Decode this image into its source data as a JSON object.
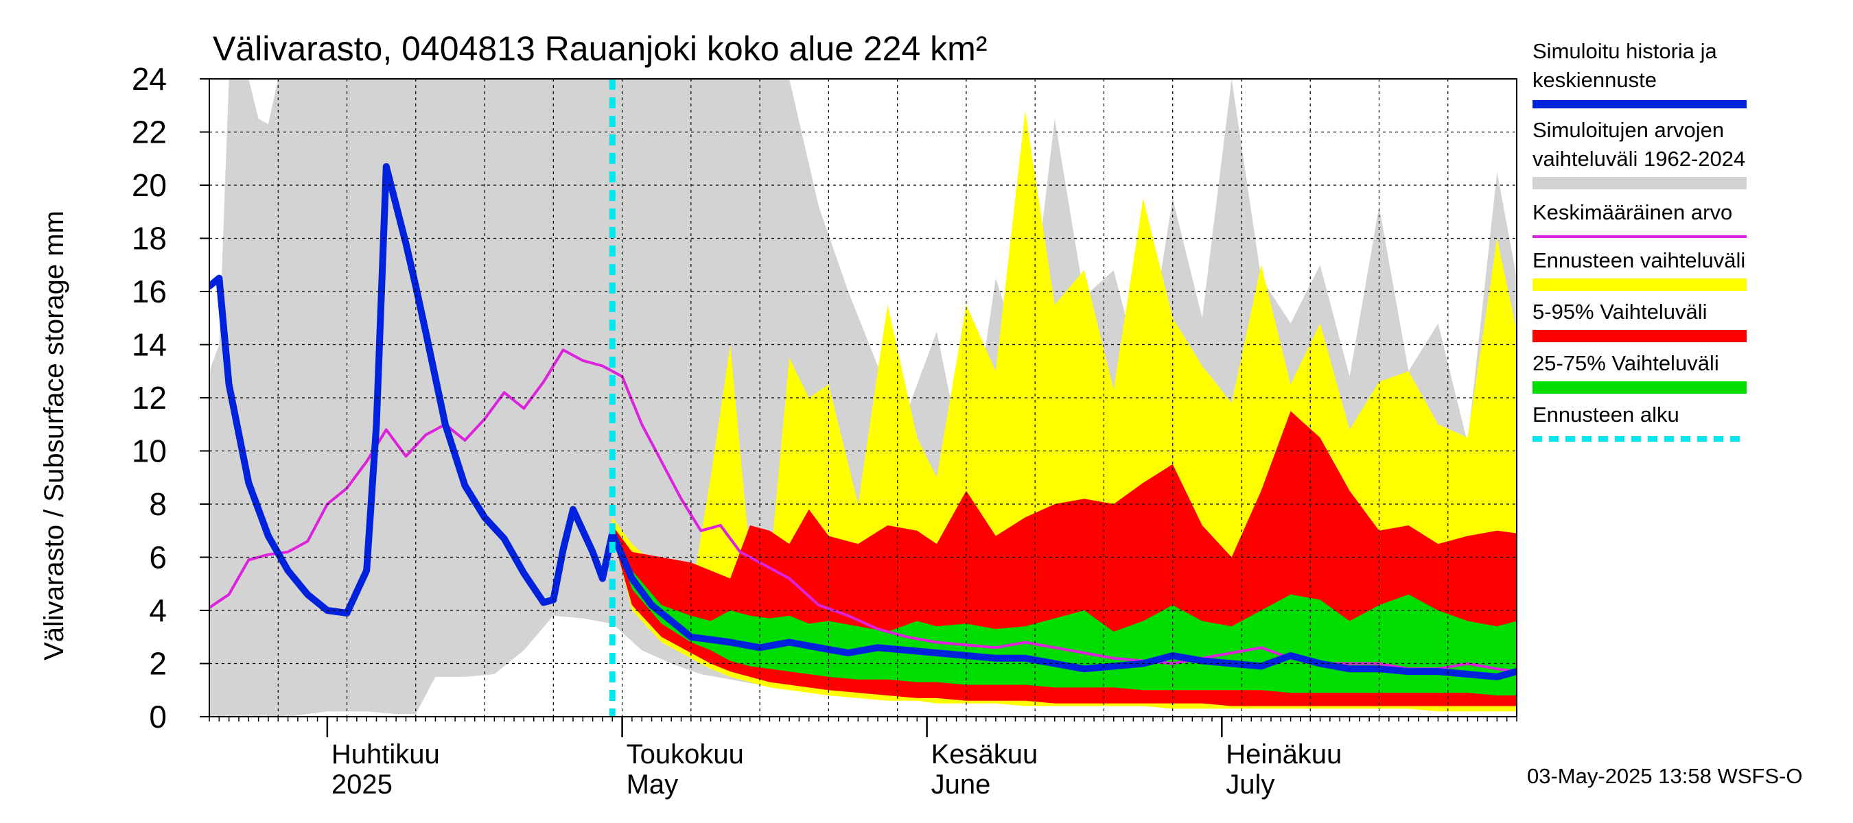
{
  "chart_data": {
    "type": "area",
    "title": "Välivarasto, 0404813 Rauanjoki koko alue 224 km²",
    "ylabel": "Välivarasto / Subsurface storage  mm",
    "xlabel": "",
    "x_range": [
      "2025-03-20",
      "2025-07-31"
    ],
    "ylim": [
      0,
      24
    ],
    "yticks": [
      0,
      2,
      4,
      6,
      8,
      10,
      12,
      14,
      16,
      18,
      20,
      22,
      24
    ],
    "grid": true,
    "legend_position": "right",
    "month_labels": [
      {
        "date": "2025-04-01",
        "fi": "Huhtikuu",
        "en": "2025"
      },
      {
        "date": "2025-05-01",
        "fi": "Toukokuu",
        "en": "May"
      },
      {
        "date": "2025-06-01",
        "fi": "Kesäkuu",
        "en": "June"
      },
      {
        "date": "2025-07-01",
        "fi": "Heinäkuu",
        "en": "July"
      }
    ],
    "forecast_start": "2025-04-30",
    "legend": [
      {
        "label": "Simuloitu historia ja keskiennuste",
        "color": "#0022dd",
        "style": "thick-line"
      },
      {
        "label": "Simuloitujen arvojen vaihteluväli 1962-2024",
        "color": "#d3d3d3",
        "style": "band"
      },
      {
        "label": "Keskimääräinen arvo",
        "color": "#dd22dd",
        "style": "line"
      },
      {
        "label": "Ennusteen vaihteluväli",
        "color": "#ffff00",
        "style": "band"
      },
      {
        "label": "5-95% Vaihteluväli",
        "color": "#ff0000",
        "style": "band"
      },
      {
        "label": "25-75% Vaihteluväli",
        "color": "#00dd00",
        "style": "band"
      },
      {
        "label": "Ennusteen alku",
        "color": "#00e5ee",
        "style": "dashed-line"
      }
    ],
    "footer": "03-May-2025 13:58 WSFS-O",
    "series": {
      "hist_range": {
        "name": "Simuloitujen arvojen vaihteluväli 1962-2024",
        "color": "#d3d3d3",
        "x": [
          "2025-03-20",
          "2025-03-21",
          "2025-03-22",
          "2025-03-23",
          "2025-03-24",
          "2025-03-25",
          "2025-03-26",
          "2025-03-27",
          "2025-03-28",
          "2025-04-01",
          "2025-04-03",
          "2025-04-05",
          "2025-04-08",
          "2025-04-10",
          "2025-04-12",
          "2025-04-15",
          "2025-04-18",
          "2025-04-21",
          "2025-04-24",
          "2025-04-27",
          "2025-04-30",
          "2025-05-03",
          "2025-05-06",
          "2025-05-09",
          "2025-05-12",
          "2025-05-15",
          "2025-05-18",
          "2025-05-21",
          "2025-05-24",
          "2025-05-27",
          "2025-05-30",
          "2025-06-02",
          "2025-06-05",
          "2025-06-08",
          "2025-06-11",
          "2025-06-14",
          "2025-06-17",
          "2025-06-20",
          "2025-06-23",
          "2025-06-26",
          "2025-06-29",
          "2025-07-02",
          "2025-07-05",
          "2025-07-08",
          "2025-07-11",
          "2025-07-14",
          "2025-07-17",
          "2025-07-20",
          "2025-07-23",
          "2025-07-26",
          "2025-07-29",
          "2025-07-31"
        ],
        "low": [
          0,
          0,
          0,
          0,
          0,
          0,
          0,
          0,
          0,
          0.2,
          0.2,
          0.2,
          0.1,
          0.1,
          1.5,
          1.5,
          1.6,
          2.5,
          3.8,
          3.7,
          3.5,
          2.5,
          2.0,
          1.6,
          1.4,
          1.2,
          1.1,
          1.0,
          0.9,
          0.8,
          0.8,
          0.7,
          0.7,
          0.6,
          0.6,
          0.6,
          0.5,
          0.5,
          0.5,
          0.5,
          0.5,
          0.4,
          0.4,
          0.4,
          0.4,
          0.4,
          0.4,
          0.3,
          0.3,
          0.3,
          0.3,
          0.3
        ],
        "high": [
          13,
          14,
          24,
          24,
          24,
          22.5,
          22.3,
          24,
          24,
          24,
          24,
          24,
          24,
          24,
          24,
          24,
          24,
          24,
          24,
          24,
          24,
          24,
          24,
          24,
          24,
          24,
          24,
          19.2,
          16,
          13.2,
          11.5,
          14.5,
          9,
          16.5,
          13,
          22.5,
          15.8,
          16.8,
          12.5,
          19.5,
          15,
          24,
          16.5,
          14.8,
          17,
          12.8,
          19.2,
          13,
          14.8,
          10.3,
          20.5,
          16.5
        ]
      },
      "forecast_range": {
        "name": "Ennusteen vaihteluväli",
        "color": "#ffff00",
        "x": [
          "2025-04-30",
          "2025-05-02",
          "2025-05-05",
          "2025-05-08",
          "2025-05-10",
          "2025-05-12",
          "2025-05-14",
          "2025-05-16",
          "2025-05-18",
          "2025-05-20",
          "2025-05-22",
          "2025-05-25",
          "2025-05-28",
          "2025-05-31",
          "2025-06-02",
          "2025-06-05",
          "2025-06-08",
          "2025-06-11",
          "2025-06-14",
          "2025-06-17",
          "2025-06-20",
          "2025-06-23",
          "2025-06-26",
          "2025-06-29",
          "2025-07-02",
          "2025-07-05",
          "2025-07-08",
          "2025-07-11",
          "2025-07-14",
          "2025-07-17",
          "2025-07-20",
          "2025-07-23",
          "2025-07-26",
          "2025-07-29",
          "2025-07-31"
        ],
        "low": [
          7.0,
          4.0,
          2.8,
          2.2,
          1.8,
          1.5,
          1.3,
          1.1,
          1.0,
          0.9,
          0.8,
          0.7,
          0.6,
          0.6,
          0.5,
          0.5,
          0.5,
          0.4,
          0.4,
          0.4,
          0.4,
          0.4,
          0.3,
          0.3,
          0.3,
          0.3,
          0.3,
          0.3,
          0.3,
          0.3,
          0.3,
          0.2,
          0.2,
          0.2,
          0.2
        ],
        "high": [
          7.5,
          6.5,
          5.5,
          4.5,
          9,
          14,
          6,
          5.5,
          13.5,
          12,
          12.5,
          8,
          15.5,
          10.5,
          9,
          15.5,
          13,
          22.8,
          15.5,
          16.8,
          12.3,
          19.5,
          15,
          13.2,
          11.8,
          17,
          12.5,
          14.8,
          10.8,
          12.6,
          13,
          11,
          10.5,
          18,
          14.5
        ]
      },
      "p5_95": {
        "name": "5-95% Vaihteluväli",
        "color": "#ff0000",
        "x": [
          "2025-04-30",
          "2025-05-02",
          "2025-05-05",
          "2025-05-08",
          "2025-05-10",
          "2025-05-12",
          "2025-05-14",
          "2025-05-16",
          "2025-05-18",
          "2025-05-20",
          "2025-05-22",
          "2025-05-25",
          "2025-05-28",
          "2025-05-31",
          "2025-06-02",
          "2025-06-05",
          "2025-06-08",
          "2025-06-11",
          "2025-06-14",
          "2025-06-17",
          "2025-06-20",
          "2025-06-23",
          "2025-06-26",
          "2025-06-29",
          "2025-07-02",
          "2025-07-05",
          "2025-07-08",
          "2025-07-11",
          "2025-07-14",
          "2025-07-17",
          "2025-07-20",
          "2025-07-23",
          "2025-07-26",
          "2025-07-29",
          "2025-07-31"
        ],
        "low": [
          6.8,
          4.2,
          3.0,
          2.4,
          2.0,
          1.7,
          1.5,
          1.3,
          1.2,
          1.1,
          1.0,
          0.9,
          0.8,
          0.7,
          0.7,
          0.6,
          0.6,
          0.6,
          0.5,
          0.5,
          0.5,
          0.5,
          0.5,
          0.5,
          0.4,
          0.4,
          0.4,
          0.4,
          0.4,
          0.4,
          0.4,
          0.4,
          0.4,
          0.4,
          0.4
        ],
        "high": [
          7.2,
          6.2,
          6.0,
          5.8,
          5.5,
          5.2,
          7.2,
          7.0,
          6.5,
          7.8,
          6.8,
          6.5,
          7.2,
          7.0,
          6.5,
          8.5,
          6.8,
          7.5,
          8.0,
          8.2,
          8.0,
          8.8,
          9.5,
          7.2,
          6.0,
          8.5,
          11.5,
          10.5,
          8.5,
          7.0,
          7.2,
          6.5,
          6.8,
          7.0,
          6.9
        ]
      },
      "p25_75": {
        "name": "25-75% Vaihteluväli",
        "color": "#00dd00",
        "x": [
          "2025-04-30",
          "2025-05-02",
          "2025-05-05",
          "2025-05-08",
          "2025-05-10",
          "2025-05-12",
          "2025-05-14",
          "2025-05-16",
          "2025-05-18",
          "2025-05-20",
          "2025-05-22",
          "2025-05-25",
          "2025-05-28",
          "2025-05-31",
          "2025-06-02",
          "2025-06-05",
          "2025-06-08",
          "2025-06-11",
          "2025-06-14",
          "2025-06-17",
          "2025-06-20",
          "2025-06-23",
          "2025-06-26",
          "2025-06-29",
          "2025-07-02",
          "2025-07-05",
          "2025-07-08",
          "2025-07-11",
          "2025-07-14",
          "2025-07-17",
          "2025-07-20",
          "2025-07-23",
          "2025-07-26",
          "2025-07-29",
          "2025-07-31"
        ],
        "low": [
          6.9,
          4.8,
          3.5,
          2.8,
          2.5,
          2.1,
          1.9,
          1.8,
          1.7,
          1.6,
          1.5,
          1.4,
          1.4,
          1.3,
          1.3,
          1.2,
          1.2,
          1.2,
          1.1,
          1.1,
          1.1,
          1.0,
          1.0,
          1.0,
          1.0,
          1.0,
          0.9,
          0.9,
          0.9,
          0.9,
          0.9,
          0.9,
          0.9,
          0.8,
          0.8
        ],
        "high": [
          7.0,
          5.5,
          4.2,
          3.8,
          3.6,
          4.0,
          3.8,
          3.7,
          3.8,
          3.5,
          3.6,
          3.4,
          3.2,
          3.6,
          3.4,
          3.5,
          3.3,
          3.4,
          3.7,
          4.0,
          3.2,
          3.6,
          4.2,
          3.6,
          3.4,
          4.0,
          4.6,
          4.4,
          3.6,
          4.2,
          4.6,
          4.0,
          3.6,
          3.4,
          3.6
        ]
      },
      "mean": {
        "name": "Keskimääräinen arvo",
        "color": "#dd22dd",
        "x": [
          "2025-03-20",
          "2025-03-22",
          "2025-03-24",
          "2025-03-26",
          "2025-03-28",
          "2025-03-30",
          "2025-04-01",
          "2025-04-03",
          "2025-04-05",
          "2025-04-07",
          "2025-04-09",
          "2025-04-11",
          "2025-04-13",
          "2025-04-15",
          "2025-04-17",
          "2025-04-19",
          "2025-04-21",
          "2025-04-23",
          "2025-04-25",
          "2025-04-27",
          "2025-04-29",
          "2025-05-01",
          "2025-05-03",
          "2025-05-05",
          "2025-05-07",
          "2025-05-09",
          "2025-05-11",
          "2025-05-13",
          "2025-05-15",
          "2025-05-18",
          "2025-05-21",
          "2025-05-24",
          "2025-05-27",
          "2025-05-30",
          "2025-06-02",
          "2025-06-05",
          "2025-06-08",
          "2025-06-11",
          "2025-06-14",
          "2025-06-17",
          "2025-06-20",
          "2025-06-23",
          "2025-06-26",
          "2025-06-29",
          "2025-07-02",
          "2025-07-05",
          "2025-07-08",
          "2025-07-11",
          "2025-07-14",
          "2025-07-17",
          "2025-07-20",
          "2025-07-23",
          "2025-07-26",
          "2025-07-29",
          "2025-07-31"
        ],
        "y": [
          4.1,
          4.6,
          5.9,
          6.1,
          6.2,
          6.6,
          8.0,
          8.6,
          9.6,
          10.8,
          9.8,
          10.6,
          11.0,
          10.4,
          11.2,
          12.2,
          11.6,
          12.6,
          13.8,
          13.4,
          13.2,
          12.8,
          11.0,
          9.6,
          8.2,
          7.0,
          7.2,
          6.2,
          5.8,
          5.2,
          4.2,
          3.8,
          3.3,
          3.0,
          2.8,
          2.7,
          2.6,
          2.8,
          2.6,
          2.4,
          2.2,
          2.1,
          2.0,
          2.2,
          2.4,
          2.6,
          2.2,
          2.0,
          2.0,
          2.0,
          1.8,
          1.8,
          2.0,
          1.8,
          1.7
        ]
      },
      "simulated": {
        "name": "Simuloitu historia ja keskiennuste",
        "color": "#0022dd",
        "x": [
          "2025-03-20",
          "2025-03-21",
          "2025-03-22",
          "2025-03-24",
          "2025-03-26",
          "2025-03-28",
          "2025-03-30",
          "2025-04-01",
          "2025-04-03",
          "2025-04-05",
          "2025-04-06",
          "2025-04-07",
          "2025-04-09",
          "2025-04-10",
          "2025-04-11",
          "2025-04-13",
          "2025-04-15",
          "2025-04-17",
          "2025-04-19",
          "2025-04-21",
          "2025-04-23",
          "2025-04-24",
          "2025-04-25",
          "2025-04-26",
          "2025-04-28",
          "2025-04-29",
          "2025-04-30",
          "2025-05-02",
          "2025-05-04",
          "2025-05-06",
          "2025-05-08",
          "2025-05-10",
          "2025-05-12",
          "2025-05-15",
          "2025-05-18",
          "2025-05-21",
          "2025-05-24",
          "2025-05-27",
          "2025-05-30",
          "2025-06-02",
          "2025-06-05",
          "2025-06-08",
          "2025-06-11",
          "2025-06-14",
          "2025-06-17",
          "2025-06-20",
          "2025-06-23",
          "2025-06-26",
          "2025-06-29",
          "2025-07-02",
          "2025-07-05",
          "2025-07-08",
          "2025-07-11",
          "2025-07-14",
          "2025-07-17",
          "2025-07-20",
          "2025-07-23",
          "2025-07-26",
          "2025-07-29",
          "2025-07-31"
        ],
        "y": [
          16.2,
          16.5,
          12.5,
          8.8,
          6.8,
          5.5,
          4.6,
          4.0,
          3.9,
          5.5,
          11.0,
          20.7,
          17.8,
          16.2,
          14.5,
          11.0,
          8.7,
          7.5,
          6.7,
          5.4,
          4.3,
          4.4,
          6.3,
          7.8,
          6.2,
          5.2,
          6.9,
          5.2,
          4.2,
          3.6,
          3.0,
          2.9,
          2.8,
          2.6,
          2.8,
          2.6,
          2.4,
          2.6,
          2.5,
          2.4,
          2.3,
          2.2,
          2.2,
          2.0,
          1.8,
          1.9,
          2.0,
          2.3,
          2.1,
          2.0,
          1.9,
          2.3,
          2.0,
          1.8,
          1.8,
          1.7,
          1.7,
          1.6,
          1.5,
          1.7
        ]
      }
    }
  }
}
